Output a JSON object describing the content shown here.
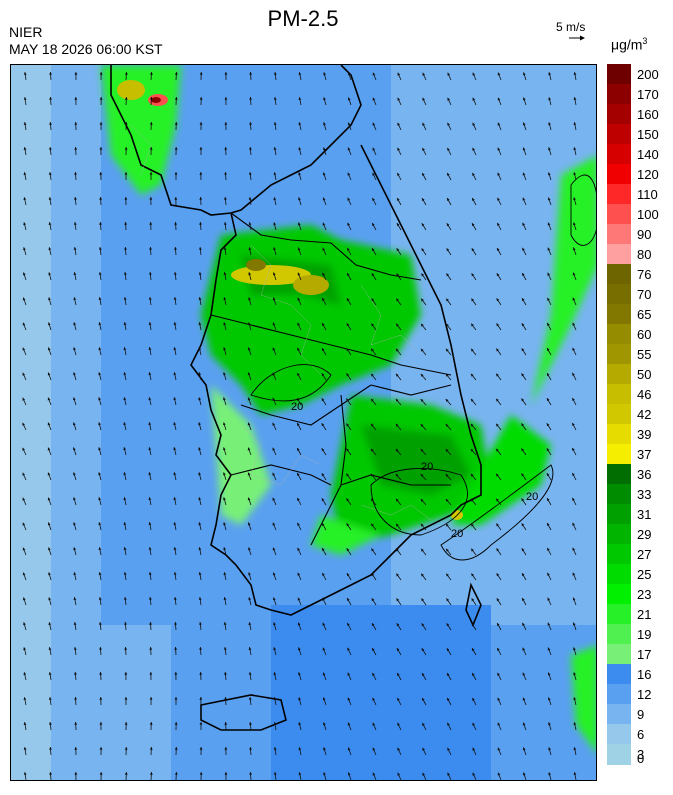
{
  "header": {
    "title": "PM-2.5",
    "agency": "NIER",
    "timestamp": "MAY 18 2026 06:00 KST",
    "wind_reference": "5 m/s",
    "unit_base": "μg/m",
    "unit_exp": "3"
  },
  "colorbar": {
    "labels": [
      "200",
      "170",
      "160",
      "150",
      "140",
      "120",
      "110",
      "100",
      "90",
      "80",
      "76",
      "70",
      "65",
      "60",
      "55",
      "50",
      "46",
      "42",
      "39",
      "37",
      "36",
      "33",
      "31",
      "29",
      "27",
      "25",
      "23",
      "21",
      "19",
      "17",
      "16",
      "12",
      "9",
      "6",
      "3",
      "0"
    ],
    "colors": [
      "#6e0000",
      "#8c0000",
      "#a50000",
      "#be0000",
      "#d70000",
      "#f00000",
      "#ff2828",
      "#ff5050",
      "#ff7878",
      "#ffa0a0",
      "#6e6400",
      "#786e00",
      "#827800",
      "#968c00",
      "#a09600",
      "#b4aa00",
      "#c8be00",
      "#d2c800",
      "#e6dc00",
      "#f5ee00",
      "#006e00",
      "#008c00",
      "#00a000",
      "#00b400",
      "#00c800",
      "#00dc00",
      "#00f000",
      "#28f028",
      "#50f050",
      "#78f078",
      "#3c8cf0",
      "#5aa0f0",
      "#78b4f0",
      "#96c8eb",
      "#a0d2e6"
    ]
  },
  "map": {
    "contour_label": "20"
  }
}
